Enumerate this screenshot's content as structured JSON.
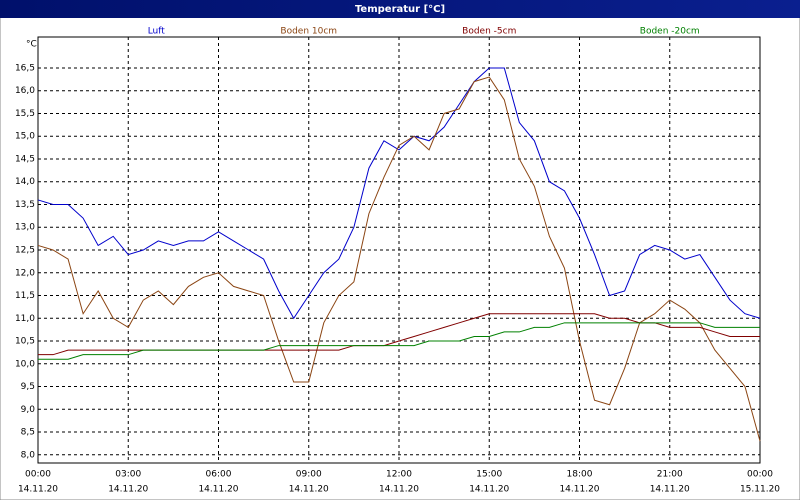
{
  "chart_data": {
    "type": "line",
    "title": "Temperatur [°C]",
    "ylabel": "°C",
    "x": [
      0,
      0.5,
      1,
      1.5,
      2,
      2.5,
      3,
      3.5,
      4,
      4.5,
      5,
      5.5,
      6,
      6.5,
      7,
      7.5,
      8,
      8.5,
      9,
      9.5,
      10,
      10.5,
      11,
      11.5,
      12,
      12.5,
      13,
      13.5,
      14,
      14.5,
      15,
      15.5,
      16,
      16.5,
      17,
      17.5,
      18,
      18.5,
      19,
      19.5,
      20,
      20.5,
      21,
      21.5,
      22,
      22.5,
      23,
      23.5,
      24
    ],
    "series": [
      {
        "name": "Luft",
        "color": "#0000cc",
        "values": [
          13.6,
          13.5,
          13.5,
          13.2,
          12.6,
          12.8,
          12.4,
          12.5,
          12.7,
          12.6,
          12.7,
          12.7,
          12.9,
          12.7,
          12.5,
          12.3,
          11.6,
          11.0,
          11.5,
          12.0,
          12.3,
          13.0,
          14.3,
          14.9,
          14.7,
          15.0,
          14.9,
          15.2,
          15.7,
          16.2,
          16.5,
          16.5,
          15.3,
          14.9,
          14.0,
          13.8,
          13.2,
          12.4,
          11.5,
          11.6,
          12.4,
          12.6,
          12.5,
          12.3,
          12.4,
          11.9,
          11.4,
          11.1,
          11.0
        ]
      },
      {
        "name": "Boden 10cm",
        "color": "#8b4513",
        "values": [
          12.6,
          12.5,
          12.3,
          11.1,
          11.6,
          11.0,
          10.8,
          11.4,
          11.6,
          11.3,
          11.7,
          11.9,
          12.0,
          11.7,
          11.6,
          11.5,
          10.5,
          9.6,
          9.6,
          10.9,
          11.5,
          11.8,
          13.3,
          14.1,
          14.8,
          15.0,
          14.7,
          15.5,
          15.6,
          16.2,
          16.3,
          15.8,
          14.5,
          13.9,
          12.8,
          12.1,
          10.5,
          9.2,
          9.1,
          9.9,
          10.9,
          11.1,
          11.4,
          11.2,
          10.9,
          10.3,
          9.9,
          9.5,
          8.3
        ]
      },
      {
        "name": "Boden -5cm",
        "color": "#800000",
        "values": [
          10.2,
          10.2,
          10.3,
          10.3,
          10.3,
          10.3,
          10.3,
          10.3,
          10.3,
          10.3,
          10.3,
          10.3,
          10.3,
          10.3,
          10.3,
          10.3,
          10.3,
          10.3,
          10.3,
          10.3,
          10.3,
          10.4,
          10.4,
          10.4,
          10.5,
          10.6,
          10.7,
          10.8,
          10.9,
          11.0,
          11.1,
          11.1,
          11.1,
          11.1,
          11.1,
          11.1,
          11.1,
          11.1,
          11.0,
          11.0,
          10.9,
          10.9,
          10.8,
          10.8,
          10.8,
          10.7,
          10.6,
          10.6,
          10.6
        ]
      },
      {
        "name": "Boden -20cm",
        "color": "#008000",
        "values": [
          10.1,
          10.1,
          10.1,
          10.2,
          10.2,
          10.2,
          10.2,
          10.3,
          10.3,
          10.3,
          10.3,
          10.3,
          10.3,
          10.3,
          10.3,
          10.3,
          10.4,
          10.4,
          10.4,
          10.4,
          10.4,
          10.4,
          10.4,
          10.4,
          10.4,
          10.4,
          10.5,
          10.5,
          10.5,
          10.6,
          10.6,
          10.7,
          10.7,
          10.8,
          10.8,
          10.9,
          10.9,
          10.9,
          10.9,
          10.9,
          10.9,
          10.9,
          10.9,
          10.9,
          10.9,
          10.8,
          10.8,
          10.8,
          10.8
        ]
      }
    ],
    "xlim": [
      0,
      24
    ],
    "xticks": [
      {
        "value": 0,
        "label": "00:00"
      },
      {
        "value": 3,
        "label": "03:00"
      },
      {
        "value": 6,
        "label": "06:00"
      },
      {
        "value": 9,
        "label": "09:00"
      },
      {
        "value": 12,
        "label": "12:00"
      },
      {
        "value": 15,
        "label": "15:00"
      },
      {
        "value": 18,
        "label": "18:00"
      },
      {
        "value": 21,
        "label": "21:00"
      },
      {
        "value": 24,
        "label": "00:00"
      }
    ],
    "xtick_dates": [
      "14.11.20",
      "14.11.20",
      "14.11.20",
      "14.11.20",
      "14.11.20",
      "14.11.20",
      "14.11.20",
      "14.11.20",
      "15.11.20"
    ],
    "ylim": [
      7.82,
      17.18
    ],
    "yticks": [
      {
        "value": 8,
        "label": "8,0"
      },
      {
        "value": 8.5,
        "label": "8,5"
      },
      {
        "value": 9,
        "label": "9,0"
      },
      {
        "value": 9.5,
        "label": "9,5"
      },
      {
        "value": 10,
        "label": "10,0"
      },
      {
        "value": 10.5,
        "label": "10,5"
      },
      {
        "value": 11,
        "label": "11,0"
      },
      {
        "value": 11.5,
        "label": "11,5"
      },
      {
        "value": 12,
        "label": "12,0"
      },
      {
        "value": 12.5,
        "label": "12,5"
      },
      {
        "value": 13,
        "label": "13,0"
      },
      {
        "value": 13.5,
        "label": "13,5"
      },
      {
        "value": 14,
        "label": "14,0"
      },
      {
        "value": 14.5,
        "label": "14,5"
      },
      {
        "value": 15,
        "label": "15,0"
      },
      {
        "value": 15.5,
        "label": "15,5"
      },
      {
        "value": 16,
        "label": "16,0"
      },
      {
        "value": 16.5,
        "label": "16,5"
      }
    ],
    "grid": true
  }
}
